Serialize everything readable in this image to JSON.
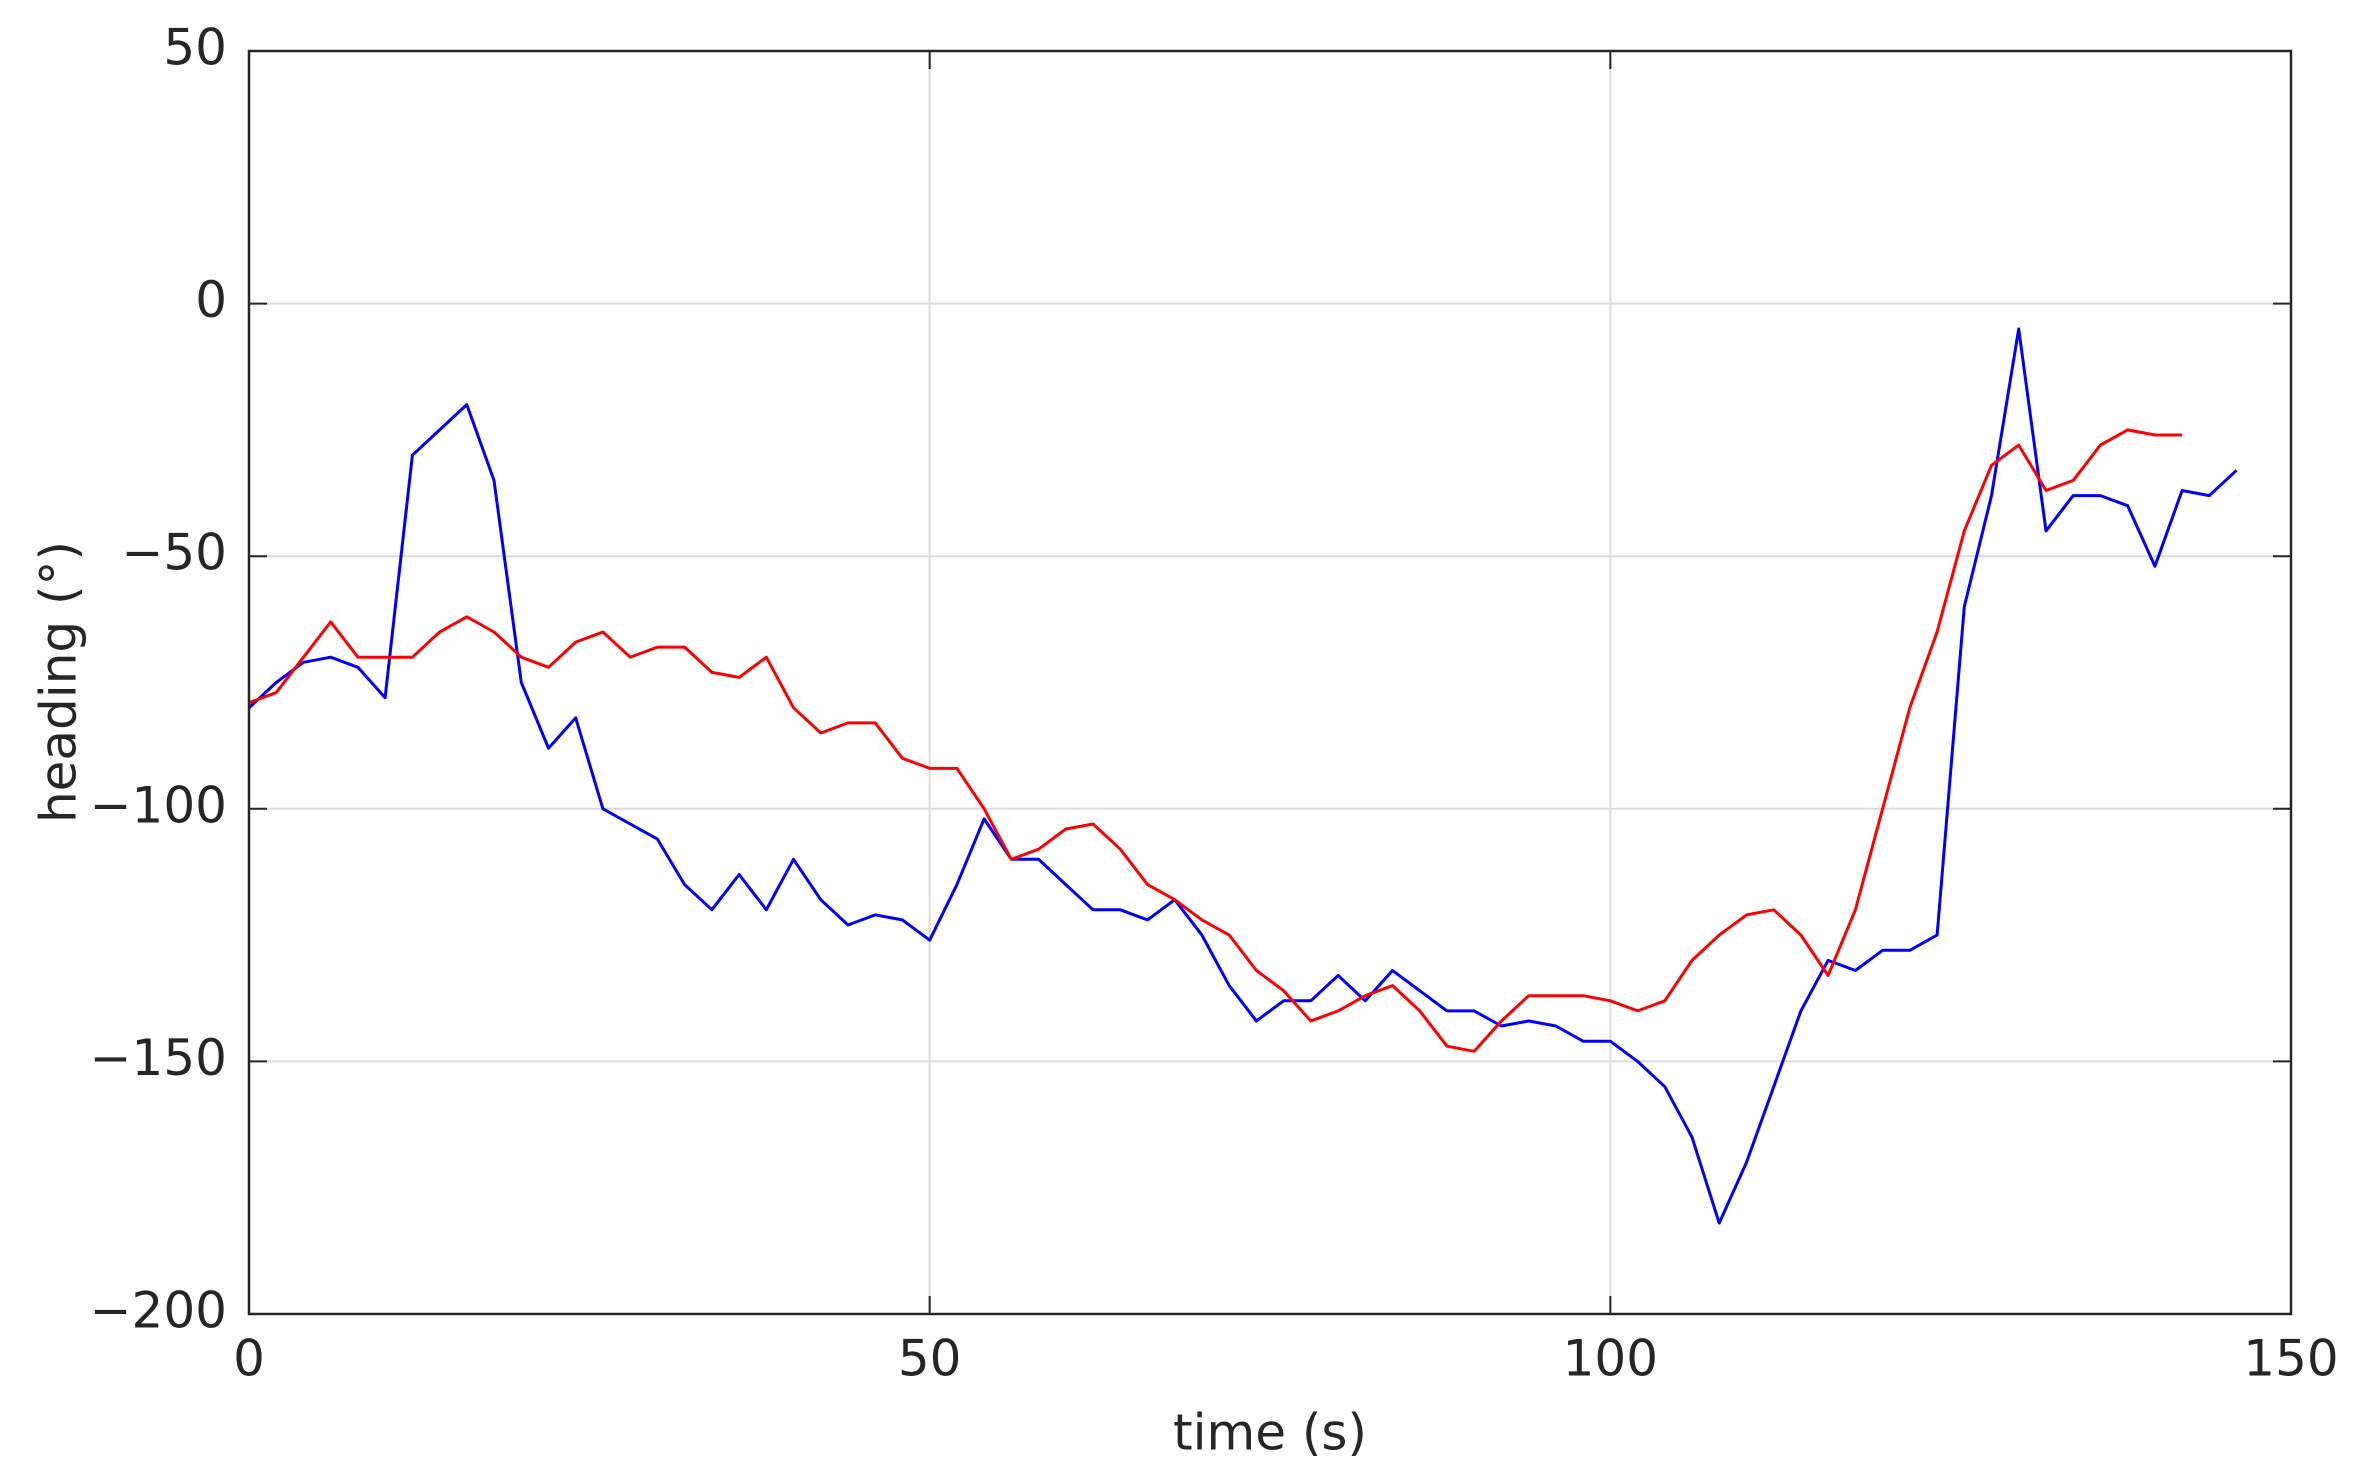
{
  "chart_data": {
    "type": "line",
    "xlabel": "time (s)",
    "ylabel": "heading (°)",
    "x": [
      0,
      2,
      4,
      6,
      8,
      10,
      12,
      14,
      16,
      18,
      20,
      22,
      24,
      26,
      28,
      30,
      32,
      34,
      36,
      38,
      40,
      42,
      44,
      46,
      48,
      50,
      52,
      54,
      56,
      58,
      60,
      62,
      64,
      66,
      68,
      70,
      72,
      74,
      76,
      78,
      80,
      82,
      84,
      86,
      88,
      90,
      92,
      94,
      96,
      98,
      100,
      102,
      104,
      106,
      108,
      110,
      112,
      114,
      116,
      118,
      120,
      122,
      124,
      126,
      128,
      130,
      132,
      134,
      136,
      138,
      140,
      142,
      144,
      146
    ],
    "series": [
      {
        "color": "#0000ff",
        "values": [
          -80,
          -75,
          -71,
          -70,
          -72,
          -78,
          -30,
          -25,
          -20,
          -35,
          -75,
          -88,
          -82,
          -100,
          -103,
          -106,
          -115,
          -120,
          -113,
          -120,
          -110,
          -118,
          -123,
          -121,
          -122,
          -126,
          -115,
          -102,
          -110,
          -110,
          -115,
          -120,
          -120,
          -122,
          -118,
          -125,
          -135,
          -142,
          -138,
          -138,
          -133,
          -138,
          -132,
          -136,
          -140,
          -140,
          -143,
          -142,
          -143,
          -146,
          -146,
          -150,
          -155,
          -165,
          -182,
          -170,
          -155,
          -140,
          -130,
          -132,
          -128,
          -128,
          -125,
          -60,
          -38,
          -5,
          -45,
          -38,
          -38,
          -40,
          -52,
          -37,
          -38,
          -33
        ]
      },
      {
        "color": "#ff0000",
        "values": [
          -79,
          -77,
          -70,
          -63,
          -70,
          -70,
          -70,
          -65,
          -62,
          -65,
          -70,
          -72,
          -67,
          -65,
          -70,
          -68,
          -68,
          -73,
          -74,
          -70,
          -80,
          -85,
          -83,
          -83,
          -90,
          -92,
          -92,
          -100,
          -110,
          -108,
          -104,
          -103,
          -108,
          -115,
          -118,
          -122,
          -125,
          -132,
          -136,
          -142,
          -140,
          -137,
          -135,
          -140,
          -147,
          -148,
          -142,
          -137,
          -137,
          -137,
          -138,
          -140,
          -138,
          -130,
          -125,
          -121,
          -120,
          -125,
          -133,
          -120,
          -100,
          -80,
          -65,
          -45,
          -32,
          -28,
          -37,
          -35,
          -28,
          -25,
          -26,
          -26,
          null,
          null
        ]
      }
    ],
    "xlim": [
      0,
      150
    ],
    "ylim": [
      -200,
      50
    ],
    "xticks": [
      0,
      50,
      100,
      150
    ],
    "yticks": [
      {
        "value": -200,
        "label": "−200"
      },
      {
        "value": -150,
        "label": "−150"
      },
      {
        "value": -100,
        "label": "−100"
      },
      {
        "value": -50,
        "label": "−50"
      },
      0,
      50
    ],
    "grid": true
  }
}
